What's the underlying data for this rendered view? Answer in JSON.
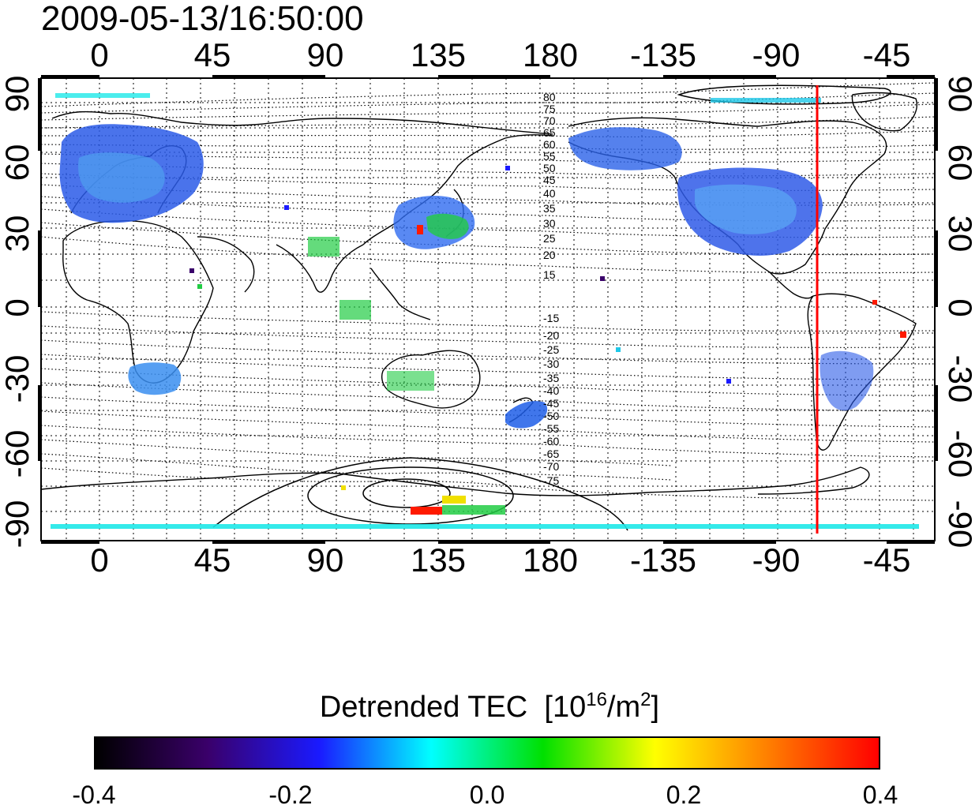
{
  "timestamp": "2009-05-13/16:50:00",
  "longitude_ticks": [
    "0",
    "45",
    "90",
    "135",
    "180",
    "-135",
    "-90",
    "-45"
  ],
  "latitude_ticks": [
    "90",
    "60",
    "30",
    "0",
    "-30",
    "-60",
    "-90"
  ],
  "magnetic_latitude_labels": {
    "north": [
      "80",
      "75",
      "70",
      "65",
      "60",
      "55",
      "50",
      "45",
      "40",
      "35",
      "30",
      "25",
      "20",
      "15"
    ],
    "south": [
      "-15",
      "-20",
      "-25",
      "-30",
      "-35",
      "-40",
      "-45",
      "-50",
      "-55",
      "-60",
      "-65",
      "-70",
      "-75"
    ]
  },
  "colorbar": {
    "title": "Detrended TEC",
    "unit_base": "10",
    "unit_exponent": "16",
    "unit_mid": "/m",
    "unit_area_exponent": "2",
    "tick_labels": [
      "-0.4",
      "-0.2",
      "0.0",
      "0.2",
      "0.4"
    ],
    "range": [
      -0.4,
      0.4
    ],
    "gradient_stops": [
      "#000000",
      "#3a006a",
      "#1a1aff",
      "#00ffff",
      "#00e000",
      "#ffff00",
      "#ff8000",
      "#ff0000"
    ]
  },
  "highlight_meridian_longitude": -75,
  "highlight_meridian_color": "#ff0000"
}
